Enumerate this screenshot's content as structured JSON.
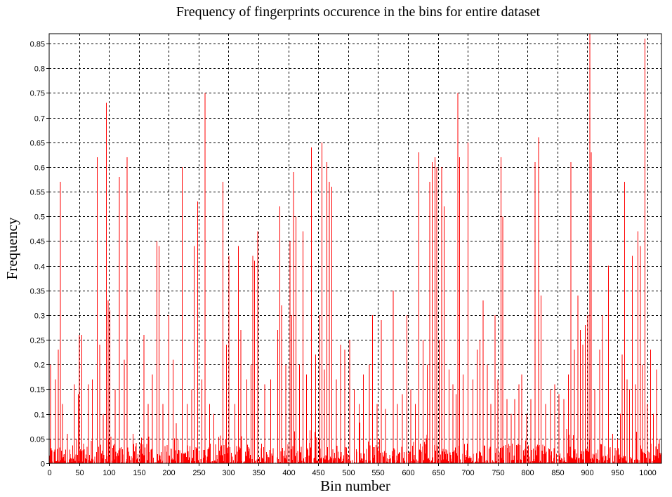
{
  "chart_data": {
    "type": "bar",
    "title": "Frequency of fingerprints occurence in the bins for entire dataset",
    "xlabel": "Bin number",
    "ylabel": "Frequency",
    "xlim": [
      0,
      1024
    ],
    "ylim": [
      0,
      0.87
    ],
    "grid": true,
    "series_color": "#ff0000",
    "x_ticks": [
      0,
      50,
      100,
      150,
      200,
      250,
      300,
      350,
      400,
      450,
      500,
      550,
      600,
      650,
      700,
      750,
      800,
      850,
      900,
      950,
      1000
    ],
    "y_ticks": [
      0,
      0.05,
      0.1,
      0.15,
      0.2,
      0.25,
      0.3,
      0.35,
      0.4,
      0.45,
      0.5,
      0.55,
      0.6,
      0.65,
      0.7,
      0.75,
      0.8,
      0.85
    ],
    "x_tick_labels": [
      "0",
      "50",
      "100",
      "150",
      "200",
      "250",
      "300",
      "350",
      "400",
      "450",
      "500",
      "550",
      "600",
      "650",
      "700",
      "750",
      "800",
      "850",
      "900",
      "950",
      "1000"
    ],
    "y_tick_labels": [
      "0",
      "0.05",
      "0.1",
      "0.15",
      "0.2",
      "0.25",
      "0.3",
      "0.35",
      "0.4",
      "0.45",
      "0.5",
      "0.55",
      "0.6",
      "0.65",
      "0.7",
      "0.75",
      "0.8",
      "0.85"
    ],
    "baseline_max": 0.04,
    "peaks": [
      [
        2,
        0.2
      ],
      [
        10,
        0.17
      ],
      [
        15,
        0.23
      ],
      [
        18,
        0.57
      ],
      [
        22,
        0.12
      ],
      [
        30,
        0.06
      ],
      [
        42,
        0.16
      ],
      [
        48,
        0.14
      ],
      [
        50,
        0.26
      ],
      [
        54,
        0.26
      ],
      [
        65,
        0.16
      ],
      [
        72,
        0.17
      ],
      [
        80,
        0.62
      ],
      [
        84,
        0.24
      ],
      [
        90,
        0.1
      ],
      [
        95,
        0.73
      ],
      [
        98,
        0.33
      ],
      [
        101,
        0.31
      ],
      [
        110,
        0.15
      ],
      [
        117,
        0.58
      ],
      [
        125,
        0.21
      ],
      [
        130,
        0.62
      ],
      [
        140,
        0.06
      ],
      [
        158,
        0.26
      ],
      [
        165,
        0.12
      ],
      [
        172,
        0.18
      ],
      [
        180,
        0.45
      ],
      [
        183,
        0.44
      ],
      [
        190,
        0.12
      ],
      [
        200,
        0.3
      ],
      [
        207,
        0.21
      ],
      [
        215,
        0.05
      ],
      [
        222,
        0.6
      ],
      [
        230,
        0.12
      ],
      [
        238,
        0.15
      ],
      [
        242,
        0.44
      ],
      [
        248,
        0.53
      ],
      [
        255,
        0.17
      ],
      [
        260,
        0.75
      ],
      [
        268,
        0.12
      ],
      [
        275,
        0.1
      ],
      [
        290,
        0.57
      ],
      [
        296,
        0.24
      ],
      [
        300,
        0.42
      ],
      [
        310,
        0.12
      ],
      [
        316,
        0.44
      ],
      [
        320,
        0.27
      ],
      [
        330,
        0.17
      ],
      [
        337,
        0.2
      ],
      [
        340,
        0.42
      ],
      [
        343,
        0.41
      ],
      [
        348,
        0.47
      ],
      [
        360,
        0.16
      ],
      [
        370,
        0.17
      ],
      [
        382,
        0.27
      ],
      [
        385,
        0.52
      ],
      [
        388,
        0.32
      ],
      [
        395,
        0.2
      ],
      [
        402,
        0.45
      ],
      [
        405,
        0.3
      ],
      [
        408,
        0.59
      ],
      [
        412,
        0.5
      ],
      [
        418,
        0.2
      ],
      [
        424,
        0.47
      ],
      [
        430,
        0.18
      ],
      [
        438,
        0.64
      ],
      [
        445,
        0.22
      ],
      [
        452,
        0.3
      ],
      [
        456,
        0.65
      ],
      [
        460,
        0.19
      ],
      [
        464,
        0.61
      ],
      [
        468,
        0.57
      ],
      [
        472,
        0.56
      ],
      [
        480,
        0.17
      ],
      [
        487,
        0.24
      ],
      [
        494,
        0.23
      ],
      [
        502,
        0.25
      ],
      [
        510,
        0.15
      ],
      [
        518,
        0.12
      ],
      [
        525,
        0.18
      ],
      [
        535,
        0.2
      ],
      [
        540,
        0.3
      ],
      [
        548,
        0.12
      ],
      [
        555,
        0.29
      ],
      [
        562,
        0.11
      ],
      [
        575,
        0.35
      ],
      [
        582,
        0.12
      ],
      [
        590,
        0.14
      ],
      [
        598,
        0.3
      ],
      [
        604,
        0.15
      ],
      [
        612,
        0.12
      ],
      [
        618,
        0.63
      ],
      [
        625,
        0.25
      ],
      [
        632,
        0.2
      ],
      [
        636,
        0.57
      ],
      [
        640,
        0.61
      ],
      [
        645,
        0.62
      ],
      [
        648,
        0.6
      ],
      [
        652,
        0.25
      ],
      [
        656,
        0.6
      ],
      [
        660,
        0.52
      ],
      [
        668,
        0.19
      ],
      [
        675,
        0.16
      ],
      [
        680,
        0.14
      ],
      [
        683,
        0.75
      ],
      [
        686,
        0.62
      ],
      [
        692,
        0.18
      ],
      [
        700,
        0.65
      ],
      [
        708,
        0.17
      ],
      [
        715,
        0.23
      ],
      [
        720,
        0.25
      ],
      [
        725,
        0.33
      ],
      [
        732,
        0.2
      ],
      [
        738,
        0.12
      ],
      [
        745,
        0.3
      ],
      [
        750,
        0.17
      ],
      [
        755,
        0.62
      ],
      [
        758,
        0.5
      ],
      [
        765,
        0.13
      ],
      [
        772,
        0.1
      ],
      [
        778,
        0.13
      ],
      [
        785,
        0.16
      ],
      [
        790,
        0.18
      ],
      [
        798,
        0.1
      ],
      [
        805,
        0.13
      ],
      [
        812,
        0.61
      ],
      [
        818,
        0.66
      ],
      [
        822,
        0.34
      ],
      [
        830,
        0.12
      ],
      [
        838,
        0.15
      ],
      [
        845,
        0.16
      ],
      [
        852,
        0.14
      ],
      [
        860,
        0.13
      ],
      [
        868,
        0.18
      ],
      [
        872,
        0.61
      ],
      [
        878,
        0.23
      ],
      [
        884,
        0.34
      ],
      [
        888,
        0.27
      ],
      [
        892,
        0.24
      ],
      [
        896,
        0.28
      ],
      [
        900,
        0.3
      ],
      [
        904,
        0.87
      ],
      [
        906,
        0.63
      ],
      [
        912,
        0.15
      ],
      [
        920,
        0.23
      ],
      [
        925,
        0.3
      ],
      [
        935,
        0.4
      ],
      [
        942,
        0.06
      ],
      [
        950,
        0.05
      ],
      [
        955,
        0.1
      ],
      [
        958,
        0.22
      ],
      [
        962,
        0.57
      ],
      [
        966,
        0.17
      ],
      [
        970,
        0.15
      ],
      [
        975,
        0.42
      ],
      [
        980,
        0.16
      ],
      [
        984,
        0.47
      ],
      [
        988,
        0.44
      ],
      [
        992,
        0.2
      ],
      [
        996,
        0.86
      ],
      [
        1000,
        0.12
      ],
      [
        1005,
        0.23
      ],
      [
        1010,
        0.1
      ],
      [
        1015,
        0.19
      ],
      [
        1020,
        0.05
      ]
    ]
  }
}
